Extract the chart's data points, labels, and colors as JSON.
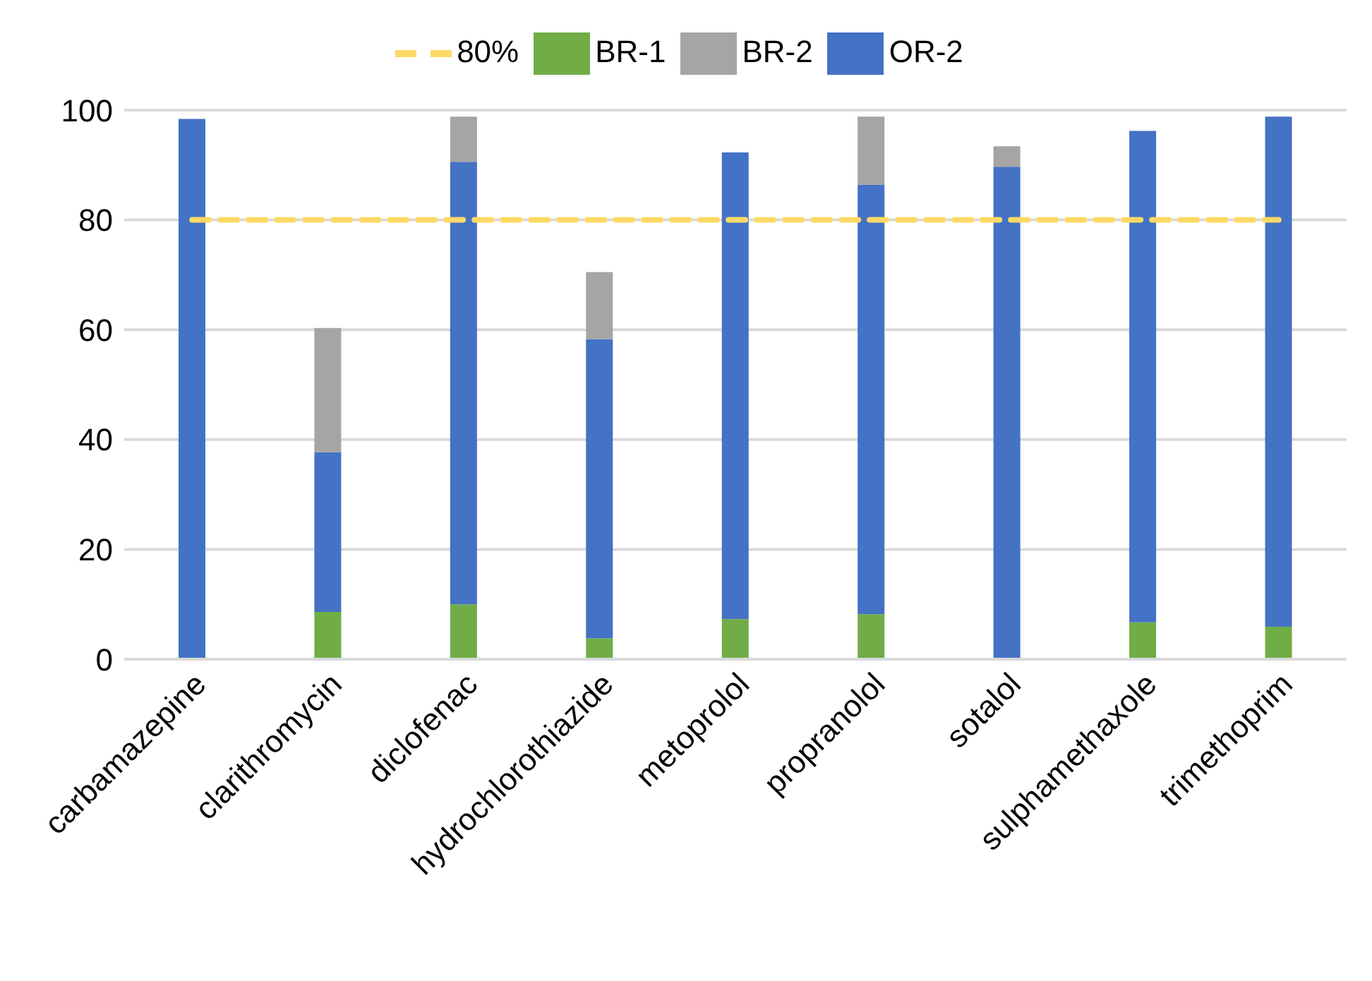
{
  "chart_data": {
    "type": "bar",
    "stacked": true,
    "categories": [
      "carbamazepine",
      "clarithromycin",
      "diclofenac",
      "hydrochlorothiazide",
      "metoprolol",
      "propranolol",
      "sotalol",
      "sulphamethaxole",
      "trimethoprim"
    ],
    "series": [
      {
        "name": "BR-1",
        "color": "#70ad47",
        "values": [
          0,
          8.6,
          10,
          3.8,
          7.3,
          8.2,
          0,
          6.7,
          5.9
        ]
      },
      {
        "name": "OR-2",
        "color": "#4472c4",
        "values": [
          98.4,
          29.1,
          80.6,
          54.5,
          85,
          78.2,
          89.7,
          89.5,
          92.9
        ]
      },
      {
        "name": "BR-2",
        "color": "#a5a5a5",
        "values": [
          0,
          22.6,
          8.2,
          12.2,
          0,
          12.4,
          3.7,
          0,
          0
        ]
      },
      {
        "name": "80%",
        "type": "line",
        "color": "#ffd966",
        "line_style": "dashed",
        "marker": "none",
        "values": [
          80,
          80,
          80,
          80,
          80,
          80,
          80,
          80,
          80
        ]
      }
    ],
    "ylim": [
      0,
      100
    ],
    "yticks": [
      0,
      20,
      40,
      60,
      80,
      100
    ],
    "grid": "y",
    "legend": "top"
  }
}
